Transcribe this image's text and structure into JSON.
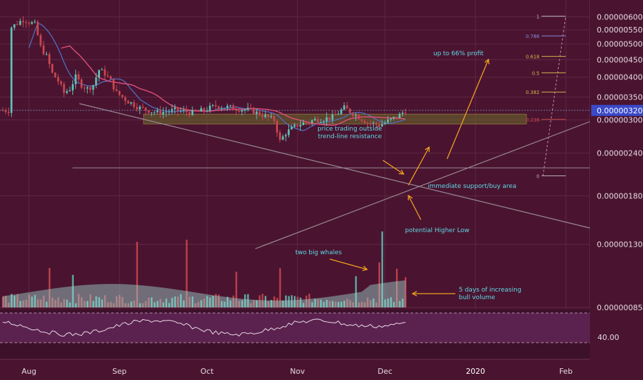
{
  "chart_data": {
    "type": "candlestick",
    "colors": {
      "background": "#4a1430",
      "grid": "#5e2845",
      "bull": "#5fbfb3",
      "bear": "#c9474f",
      "ma_fast": "#4f6fc0",
      "ma_slow": "#e0507c",
      "annotation": "#5fd8e6",
      "arrow": "#f2a21d",
      "trendline": "#9a8a96",
      "support_zone": "#6b6b2a",
      "fib": "#d7b24a",
      "rsi_panel": "#6a2a60",
      "rsi_line": "#e6dce6",
      "price_tag": "#3a49c9"
    },
    "x_axis": {
      "ticks": [
        {
          "label": "Aug",
          "day": 0
        },
        {
          "label": "Sep",
          "day": 31
        },
        {
          "label": "Oct",
          "day": 61
        },
        {
          "label": "Nov",
          "day": 92
        },
        {
          "label": "Dec",
          "day": 122
        },
        {
          "label": "2020",
          "day": 153
        },
        {
          "label": "Feb",
          "day": 184
        }
      ]
    },
    "y_axis": {
      "scale": "log",
      "range": [
        8.5e-07,
        6.3e-06
      ],
      "ticks": [
        "0.00000600",
        "0.00000550",
        "0.00000500",
        "0.00000450",
        "0.00000400",
        "0.00000350",
        "0.00000300",
        "0.00000240",
        "0.00000180",
        "0.00000130",
        "0.00000085"
      ],
      "current_price": "0.00000320"
    },
    "rsi": {
      "label": "40.00"
    },
    "candles": [],
    "fib_levels": [
      {
        "label": "1",
        "value": 6.03e-06
      },
      {
        "label": "0.786",
        "value": 5.28e-06
      },
      {
        "label": "0.618",
        "value": 4.6e-06
      },
      {
        "label": "0.5",
        "value": 4.12e-06
      },
      {
        "label": "0.382",
        "value": 3.62e-06
      },
      {
        "label": "0.236",
        "value": 3.01e-06
      },
      {
        "label": "0",
        "value": 2.06e-06
      }
    ],
    "annotations": {
      "profit": "up to 66% profit",
      "resistance": "price trading outside\ntrend-line resistance",
      "support": "immediate support/buy area",
      "higher_low": "potential Higher Low",
      "whales": "two big whales",
      "volume": "5 days of increasing\nbull volume"
    }
  }
}
